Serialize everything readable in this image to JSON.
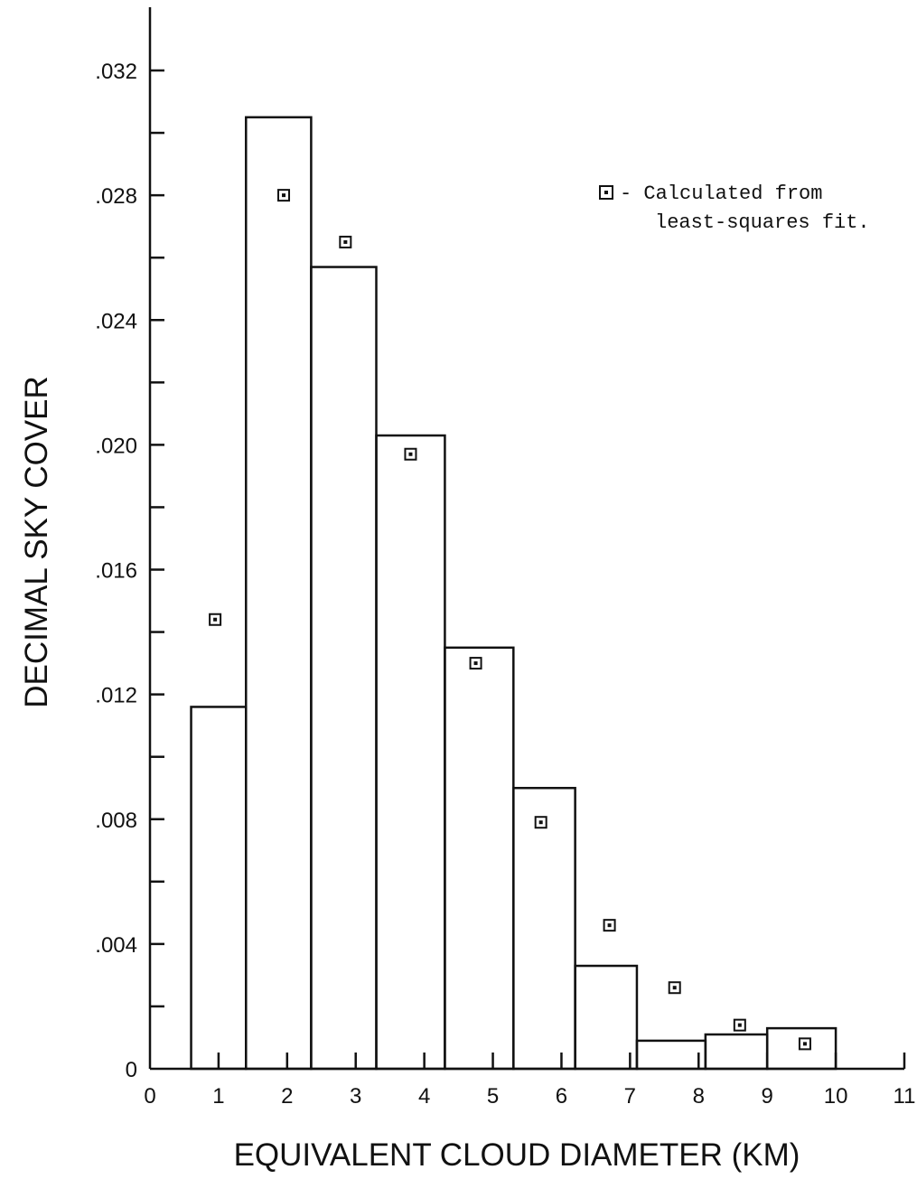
{
  "chart_data": {
    "type": "bar",
    "xlabel": "EQUIVALENT CLOUD DIAMETER (KM)",
    "ylabel": "DECIMAL SKY COVER",
    "xlim": [
      0,
      11
    ],
    "ylim": [
      0,
      0.034
    ],
    "x_ticks": [
      0,
      1,
      2,
      3,
      4,
      5,
      6,
      7,
      8,
      9,
      10,
      11
    ],
    "x_tick_labels": [
      "0",
      "1",
      "2",
      "3",
      "4",
      "5",
      "6",
      "7",
      "8",
      "9",
      "10",
      "11"
    ],
    "y_ticks_labeled": [
      0,
      0.004,
      0.008,
      0.012,
      0.016,
      0.02,
      0.024,
      0.028,
      0.032
    ],
    "y_tick_labels": [
      "0",
      ".004",
      ".008",
      ".012",
      ".016",
      ".020",
      ".024",
      ".028",
      ".032"
    ],
    "y_ticks_minor": [
      0.002,
      0.006,
      0.01,
      0.014,
      0.018,
      0.022,
      0.026,
      0.03
    ],
    "series": [
      {
        "kind": "bars",
        "bins": [
          {
            "x0": 0.6,
            "x1": 1.4,
            "value": 0.0116
          },
          {
            "x0": 1.4,
            "x1": 2.35,
            "value": 0.0305
          },
          {
            "x0": 2.35,
            "x1": 3.3,
            "value": 0.0257
          },
          {
            "x0": 3.3,
            "x1": 4.3,
            "value": 0.0203
          },
          {
            "x0": 4.3,
            "x1": 5.3,
            "value": 0.0135
          },
          {
            "x0": 5.3,
            "x1": 6.2,
            "value": 0.009
          },
          {
            "x0": 6.2,
            "x1": 7.1,
            "value": 0.0033
          },
          {
            "x0": 7.1,
            "x1": 8.1,
            "value": 0.0009
          },
          {
            "x0": 8.1,
            "x1": 9.0,
            "value": 0.0011
          },
          {
            "x0": 9.0,
            "x1": 10.0,
            "value": 0.0013
          }
        ]
      },
      {
        "name": "Calculated from least-squares fit.",
        "kind": "points",
        "points": [
          {
            "x": 0.95,
            "y": 0.0144
          },
          {
            "x": 1.95,
            "y": 0.028
          },
          {
            "x": 2.85,
            "y": 0.0265
          },
          {
            "x": 3.8,
            "y": 0.0197
          },
          {
            "x": 4.75,
            "y": 0.013
          },
          {
            "x": 5.7,
            "y": 0.0079
          },
          {
            "x": 6.7,
            "y": 0.0046
          },
          {
            "x": 7.65,
            "y": 0.0026
          },
          {
            "x": 8.6,
            "y": 0.0014
          },
          {
            "x": 9.55,
            "y": 0.0008
          }
        ]
      }
    ],
    "legend": {
      "placement": "top-right",
      "marker": "open-square-with-dot",
      "lines": [
        "- Calculated from",
        "least-squares fit."
      ]
    },
    "grid": false
  }
}
